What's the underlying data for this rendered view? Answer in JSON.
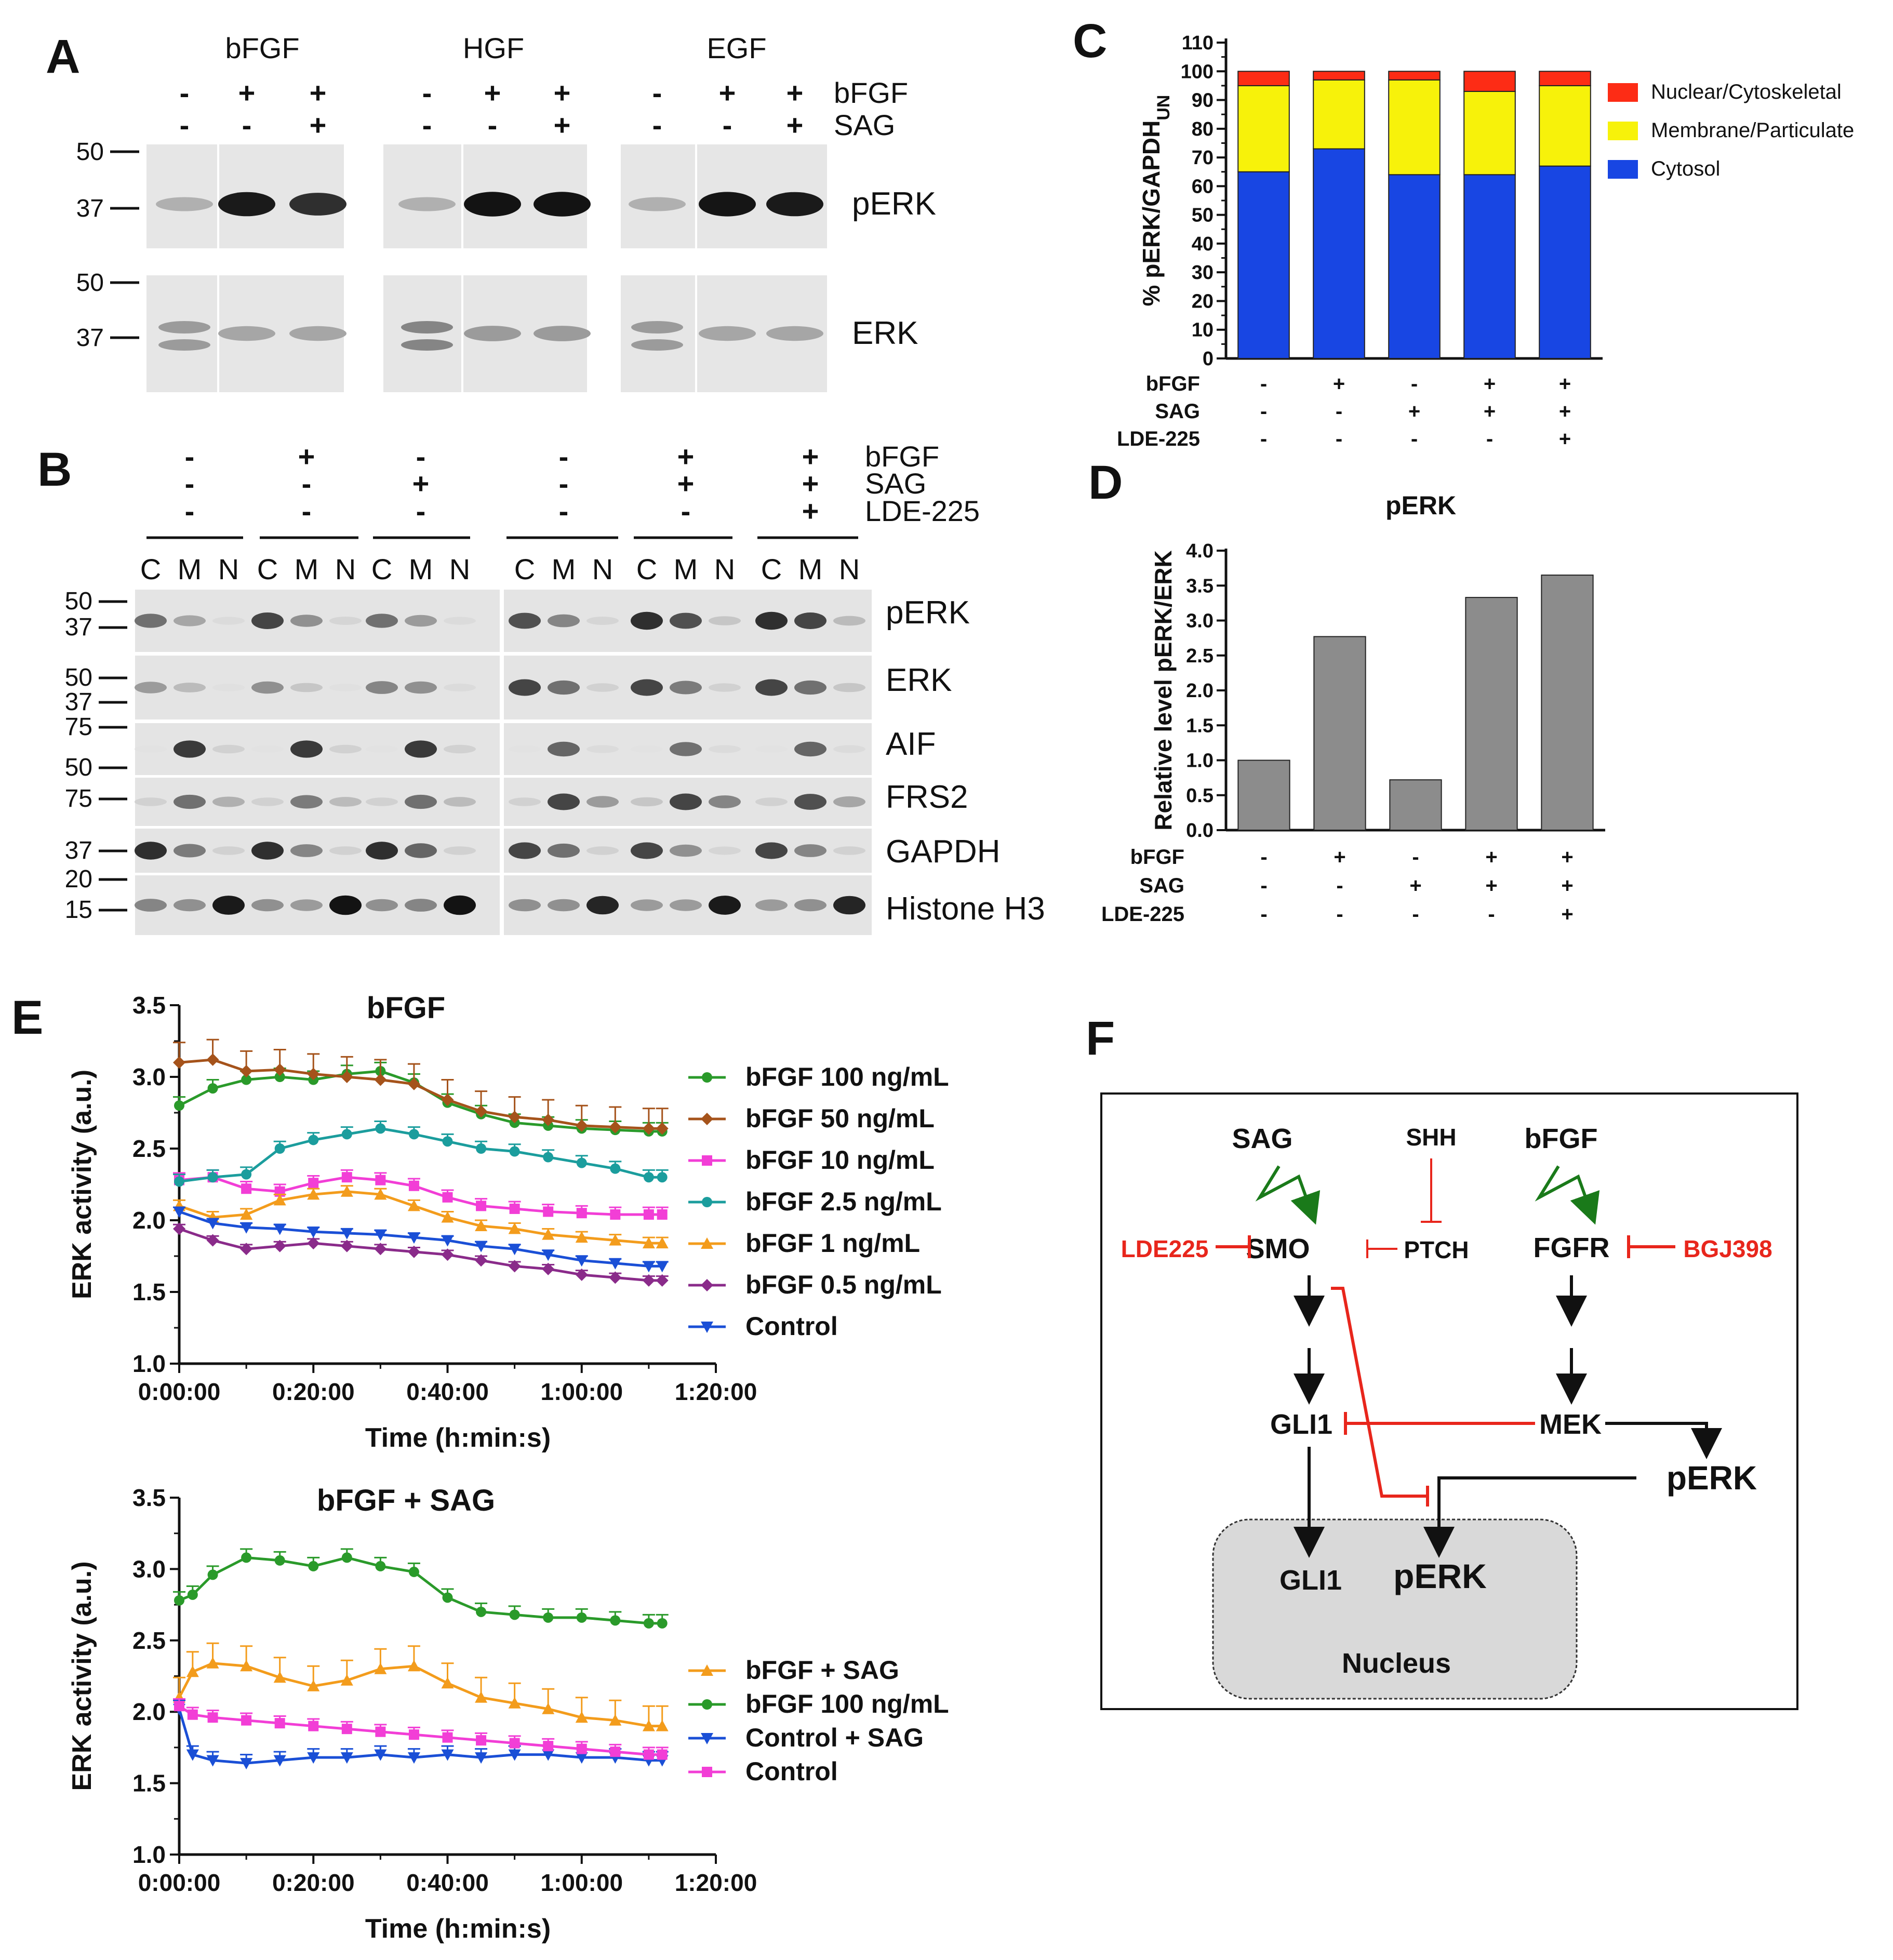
{
  "panels": {
    "A": {
      "label": "A",
      "groups": [
        "bFGF",
        "HGF",
        "EGF"
      ],
      "treat_rows": [
        {
          "name": "bFGF",
          "signs": [
            "-",
            "+",
            "+",
            "-",
            "+",
            "+",
            "-",
            "+",
            "+"
          ]
        },
        {
          "name": "SAG",
          "signs": [
            "-",
            "-",
            "+",
            "-",
            "-",
            "+",
            "-",
            "-",
            "+"
          ]
        }
      ],
      "blots": [
        "pERK",
        "ERK"
      ],
      "markers": {
        "pERK": [
          "50",
          "37"
        ],
        "ERK": [
          "50",
          "37"
        ]
      }
    },
    "B": {
      "label": "B",
      "treat_rows": [
        {
          "name": "bFGF",
          "signs": [
            "-",
            "+",
            "-",
            "-",
            "+",
            "+"
          ]
        },
        {
          "name": "SAG",
          "signs": [
            "-",
            "-",
            "+",
            "-",
            "+",
            "+"
          ]
        },
        {
          "name": "LDE-225",
          "signs": [
            "-",
            "-",
            "-",
            "-",
            "-",
            "+"
          ]
        }
      ],
      "fractions": [
        "C",
        "M",
        "N"
      ],
      "blots": [
        "pERK",
        "ERK",
        "AIF",
        "FRS2",
        "GAPDH",
        "Histone H3"
      ],
      "markers": {
        "pERK": [
          "50",
          "37"
        ],
        "ERK": [
          "50",
          "37"
        ],
        "AIF": [
          "75",
          "50"
        ],
        "FRS2": [
          "75"
        ],
        "GAPDH": [
          "37"
        ],
        "Histone H3": [
          "20",
          "15"
        ]
      }
    },
    "C": {
      "label": "C"
    },
    "D": {
      "label": "D"
    },
    "E": {
      "label": "E"
    },
    "F": {
      "label": "F",
      "nodes": {
        "sag": "SAG",
        "shh": "SHH",
        "bfgf": "bFGF",
        "lde": "LDE225",
        "smo": "SMO",
        "ptch": "PTCH",
        "fgfr": "FGFR",
        "bgj": "BGJ398",
        "gli1": "GLI1",
        "mek": "MEK",
        "perk": "pERK",
        "nuc_gli1": "GLI1",
        "nuc_perk": "pERK",
        "nucleus": "Nucleus"
      },
      "colors": {
        "activate": "#1a7a1a",
        "inhibit": "#e8261c",
        "arrow": "#111111",
        "nucleus_fill": "#d9d9d9"
      }
    }
  },
  "chart_data": [
    {
      "id": "C",
      "type": "bar",
      "stacked": true,
      "ylabel_main": "% pERK/GAPDH",
      "ylabel_sub": "UN",
      "ylim": [
        0,
        110
      ],
      "yticks": [
        0,
        10,
        20,
        30,
        40,
        50,
        60,
        70,
        80,
        90,
        100,
        110
      ],
      "conditions": [
        {
          "name": "bFGF",
          "signs": [
            "-",
            "+",
            "-",
            "+",
            "+"
          ]
        },
        {
          "name": "SAG",
          "signs": [
            "-",
            "-",
            "+",
            "+",
            "+"
          ]
        },
        {
          "name": "LDE-225",
          "signs": [
            "-",
            "-",
            "-",
            "-",
            "+"
          ]
        }
      ],
      "series": [
        {
          "name": "Cytosol",
          "color": "#1846e3",
          "values": [
            65,
            73,
            64,
            64,
            67
          ]
        },
        {
          "name": "Membrane/Particulate",
          "color": "#f7f20a",
          "values": [
            30,
            24,
            33,
            29,
            28
          ]
        },
        {
          "name": "Nuclear/Cytoskeletal",
          "color": "#fd2c15",
          "values": [
            5,
            3,
            3,
            7,
            5
          ]
        }
      ],
      "legend_order": [
        "Nuclear/Cytoskeletal",
        "Membrane/Particulate",
        "Cytosol"
      ]
    },
    {
      "id": "D",
      "type": "bar",
      "title": "pERK",
      "ylabel": "Relative level pERK/ERK",
      "ylim": [
        0,
        4.0
      ],
      "yticks": [
        "0.0",
        "0.5",
        "1.0",
        "1.5",
        "2.0",
        "2.5",
        "3.0",
        "3.5",
        "4.0"
      ],
      "conditions": [
        {
          "name": "bFGF",
          "signs": [
            "-",
            "+",
            "-",
            "+",
            "+"
          ]
        },
        {
          "name": "SAG",
          "signs": [
            "-",
            "-",
            "+",
            "+",
            "+"
          ]
        },
        {
          "name": "LDE-225",
          "signs": [
            "-",
            "-",
            "-",
            "-",
            "+"
          ]
        }
      ],
      "values": [
        1.0,
        2.77,
        0.72,
        3.33,
        3.65
      ],
      "color": "#8c8c8c"
    },
    {
      "id": "E1",
      "type": "line",
      "title": "bFGF",
      "xlabel": "Time (h:min:s)",
      "ylabel": "ERK activity (a.u.)",
      "xlim": [
        0,
        80
      ],
      "xticks": [
        "0:00:00",
        "0:20:00",
        "0:40:00",
        "1:00:00",
        "1:20:00"
      ],
      "ylim": [
        1.0,
        3.5
      ],
      "yticks": [
        "1.0",
        "1.5",
        "2.0",
        "2.5",
        "3.0",
        "3.5"
      ],
      "x": [
        0,
        5,
        10,
        15,
        20,
        25,
        30,
        35,
        40,
        45,
        50,
        55,
        60,
        65,
        70,
        72
      ],
      "series": [
        {
          "name": "bFGF 100 ng/mL",
          "color": "#2a9a2a",
          "marker": "circle",
          "err": 0.06,
          "values": [
            2.8,
            2.92,
            2.98,
            3.0,
            2.98,
            3.02,
            3.04,
            2.96,
            2.82,
            2.74,
            2.68,
            2.66,
            2.64,
            2.63,
            2.62,
            2.62
          ]
        },
        {
          "name": "bFGF 50 ng/mL",
          "color": "#a5531b",
          "marker": "diamond",
          "err": 0.14,
          "values": [
            3.1,
            3.12,
            3.04,
            3.05,
            3.02,
            3.0,
            2.98,
            2.95,
            2.84,
            2.76,
            2.72,
            2.7,
            2.66,
            2.65,
            2.64,
            2.64
          ]
        },
        {
          "name": "bFGF 10 ng/mL",
          "color": "#f23ed6",
          "marker": "square",
          "err": 0.05,
          "values": [
            2.28,
            2.3,
            2.22,
            2.2,
            2.26,
            2.3,
            2.28,
            2.24,
            2.16,
            2.1,
            2.08,
            2.06,
            2.05,
            2.04,
            2.04,
            2.04
          ]
        },
        {
          "name": "bFGF 2.5 ng/mL",
          "color": "#1b9d9d",
          "marker": "circle",
          "err": 0.05,
          "values": [
            2.27,
            2.3,
            2.32,
            2.5,
            2.56,
            2.6,
            2.64,
            2.6,
            2.55,
            2.5,
            2.48,
            2.44,
            2.4,
            2.36,
            2.3,
            2.3
          ]
        },
        {
          "name": "bFGF 1 ng/mL",
          "color": "#f39c1c",
          "marker": "triangle",
          "err": 0.04,
          "values": [
            2.1,
            2.02,
            2.04,
            2.14,
            2.18,
            2.2,
            2.18,
            2.1,
            2.02,
            1.96,
            1.94,
            1.9,
            1.88,
            1.86,
            1.84,
            1.84
          ]
        },
        {
          "name": "bFGF 0.5 ng/mL",
          "color": "#8a2b8a",
          "marker": "diamond",
          "err": 0.03,
          "values": [
            1.94,
            1.86,
            1.8,
            1.82,
            1.84,
            1.82,
            1.8,
            1.78,
            1.76,
            1.72,
            1.68,
            1.66,
            1.62,
            1.6,
            1.58,
            1.58
          ]
        },
        {
          "name": "Control",
          "color": "#1a4fd6",
          "marker": "tri-down",
          "err": 0.03,
          "values": [
            2.06,
            1.98,
            1.95,
            1.94,
            1.92,
            1.91,
            1.9,
            1.88,
            1.86,
            1.82,
            1.8,
            1.76,
            1.72,
            1.7,
            1.68,
            1.68
          ]
        }
      ]
    },
    {
      "id": "E2",
      "type": "line",
      "title": "bFGF + SAG",
      "xlabel": "Time (h:min:s)",
      "ylabel": "ERK activity (a.u.)",
      "xlim": [
        0,
        80
      ],
      "xticks": [
        "0:00:00",
        "0:20:00",
        "0:40:00",
        "1:00:00",
        "1:20:00"
      ],
      "ylim": [
        1.0,
        3.5
      ],
      "yticks": [
        "1.0",
        "1.5",
        "2.0",
        "2.5",
        "3.0",
        "3.5"
      ],
      "x": [
        0,
        2,
        5,
        10,
        15,
        20,
        25,
        30,
        35,
        40,
        45,
        50,
        55,
        60,
        65,
        70,
        72
      ],
      "series": [
        {
          "name": "bFGF + SAG",
          "color": "#f39c1c",
          "marker": "triangle",
          "err": 0.14,
          "values": [
            2.1,
            2.28,
            2.34,
            2.32,
            2.24,
            2.18,
            2.22,
            2.3,
            2.32,
            2.2,
            2.1,
            2.06,
            2.02,
            1.96,
            1.94,
            1.9,
            1.9
          ]
        },
        {
          "name": "bFGF 100 ng/mL",
          "color": "#2a9a2a",
          "marker": "circle",
          "err": 0.06,
          "values": [
            2.78,
            2.82,
            2.96,
            3.08,
            3.06,
            3.02,
            3.08,
            3.02,
            2.98,
            2.8,
            2.7,
            2.68,
            2.66,
            2.66,
            2.64,
            2.62,
            2.62
          ]
        },
        {
          "name": "Control + SAG",
          "color": "#1a4fd6",
          "marker": "tri-down",
          "err": 0.06,
          "values": [
            2.02,
            1.7,
            1.66,
            1.64,
            1.66,
            1.68,
            1.68,
            1.7,
            1.68,
            1.7,
            1.68,
            1.7,
            1.7,
            1.68,
            1.68,
            1.66,
            1.66
          ]
        },
        {
          "name": "Control",
          "color": "#f23ed6",
          "marker": "square",
          "err": 0.05,
          "values": [
            2.04,
            1.98,
            1.96,
            1.94,
            1.92,
            1.9,
            1.88,
            1.86,
            1.84,
            1.82,
            1.8,
            1.78,
            1.76,
            1.74,
            1.72,
            1.7,
            1.7
          ]
        }
      ]
    }
  ]
}
